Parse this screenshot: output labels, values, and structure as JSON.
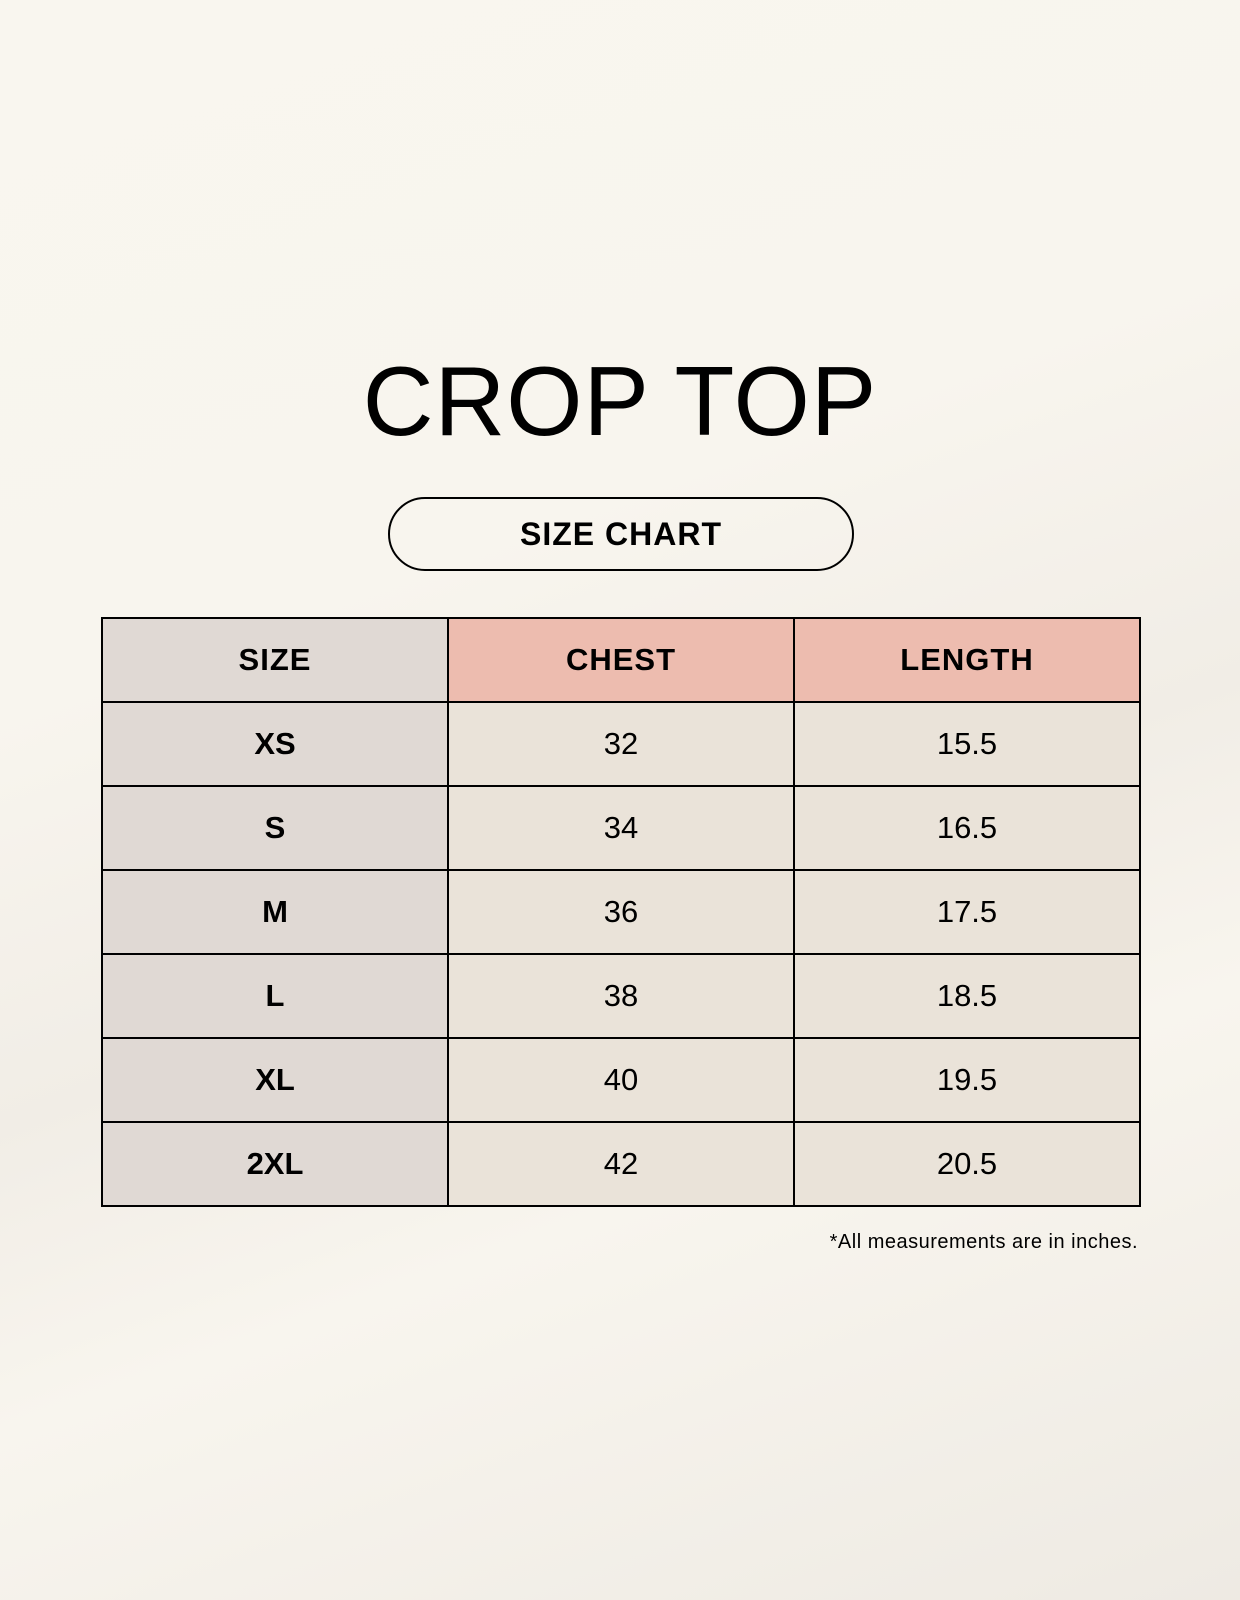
{
  "title": "CROP TOP",
  "subtitle": "SIZE CHART",
  "colors": {
    "size_column": "#e0d9d4",
    "header_accent": "#edbcaf",
    "value_cells": "#eae3d9"
  },
  "table": {
    "headers": [
      "SIZE",
      "CHEST",
      "LENGTH"
    ],
    "rows": [
      [
        "XS",
        "32",
        "15.5"
      ],
      [
        "S",
        "34",
        "16.5"
      ],
      [
        "M",
        "36",
        "17.5"
      ],
      [
        "L",
        "38",
        "18.5"
      ],
      [
        "XL",
        "40",
        "19.5"
      ],
      [
        "2XL",
        "42",
        "20.5"
      ]
    ]
  },
  "footnote": "*All measurements are in inches."
}
